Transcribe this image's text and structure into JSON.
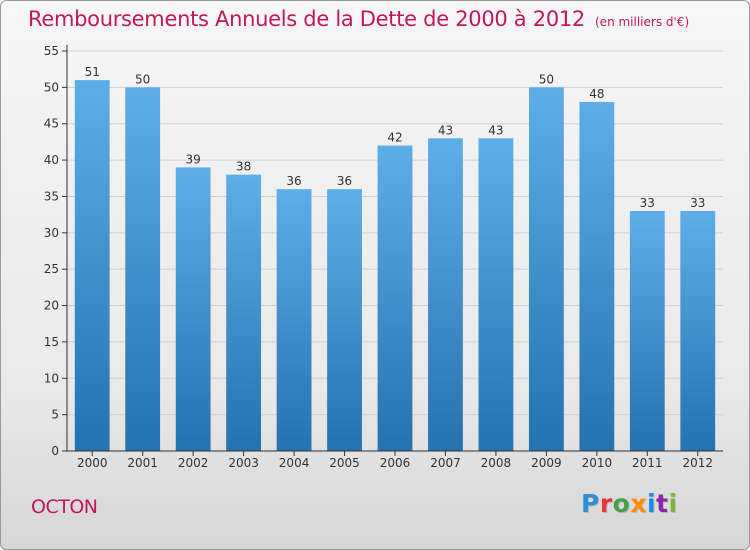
{
  "title": "Remboursements Annuels de la Dette de 2000 à 2012",
  "subtitle": "(en milliers d'€)",
  "commune": "OCTON",
  "logo": {
    "text": "Proxiti",
    "letters": [
      {
        "ch": "P",
        "color": "#2e8fd6"
      },
      {
        "ch": "r",
        "color": "#e53935"
      },
      {
        "ch": "o",
        "color": "#43a047"
      },
      {
        "ch": "x",
        "color": "#fb8c00"
      },
      {
        "ch": "i",
        "color": "#1e88e5"
      },
      {
        "ch": "t",
        "color": "#8e24aa"
      },
      {
        "ch": "i",
        "color": "#7cb342"
      }
    ]
  },
  "colors": {
    "title": "#c2185b",
    "bar_top": "#5daee8",
    "bar_bottom": "#2472b0",
    "axis": "#333333"
  },
  "chart_data": {
    "type": "bar",
    "title": "Remboursements Annuels de la Dette de 2000 à 2012",
    "subtitle": "(en milliers d'€)",
    "categories": [
      "2000",
      "2001",
      "2002",
      "2003",
      "2004",
      "2005",
      "2006",
      "2007",
      "2008",
      "2009",
      "2010",
      "2011",
      "2012"
    ],
    "values": [
      51,
      50,
      39,
      38,
      36,
      36,
      42,
      43,
      43,
      50,
      48,
      33,
      33
    ],
    "ylim": [
      0,
      55
    ],
    "yticks": [
      0,
      5,
      10,
      15,
      20,
      25,
      30,
      35,
      40,
      45,
      50,
      55
    ],
    "grid": true,
    "data_labels": true
  }
}
